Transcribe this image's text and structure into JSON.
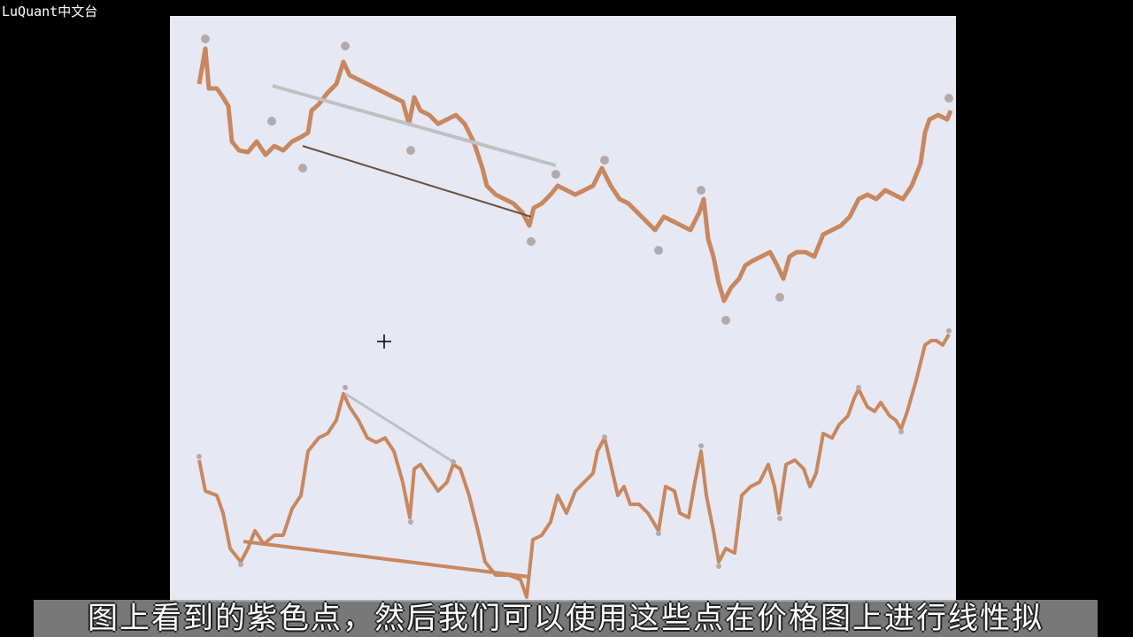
{
  "watermark": "LuQuant中文台",
  "subtitle": "图上看到的紫色点，然后我们可以使用这些点在价格图上进行线性拟"
}
